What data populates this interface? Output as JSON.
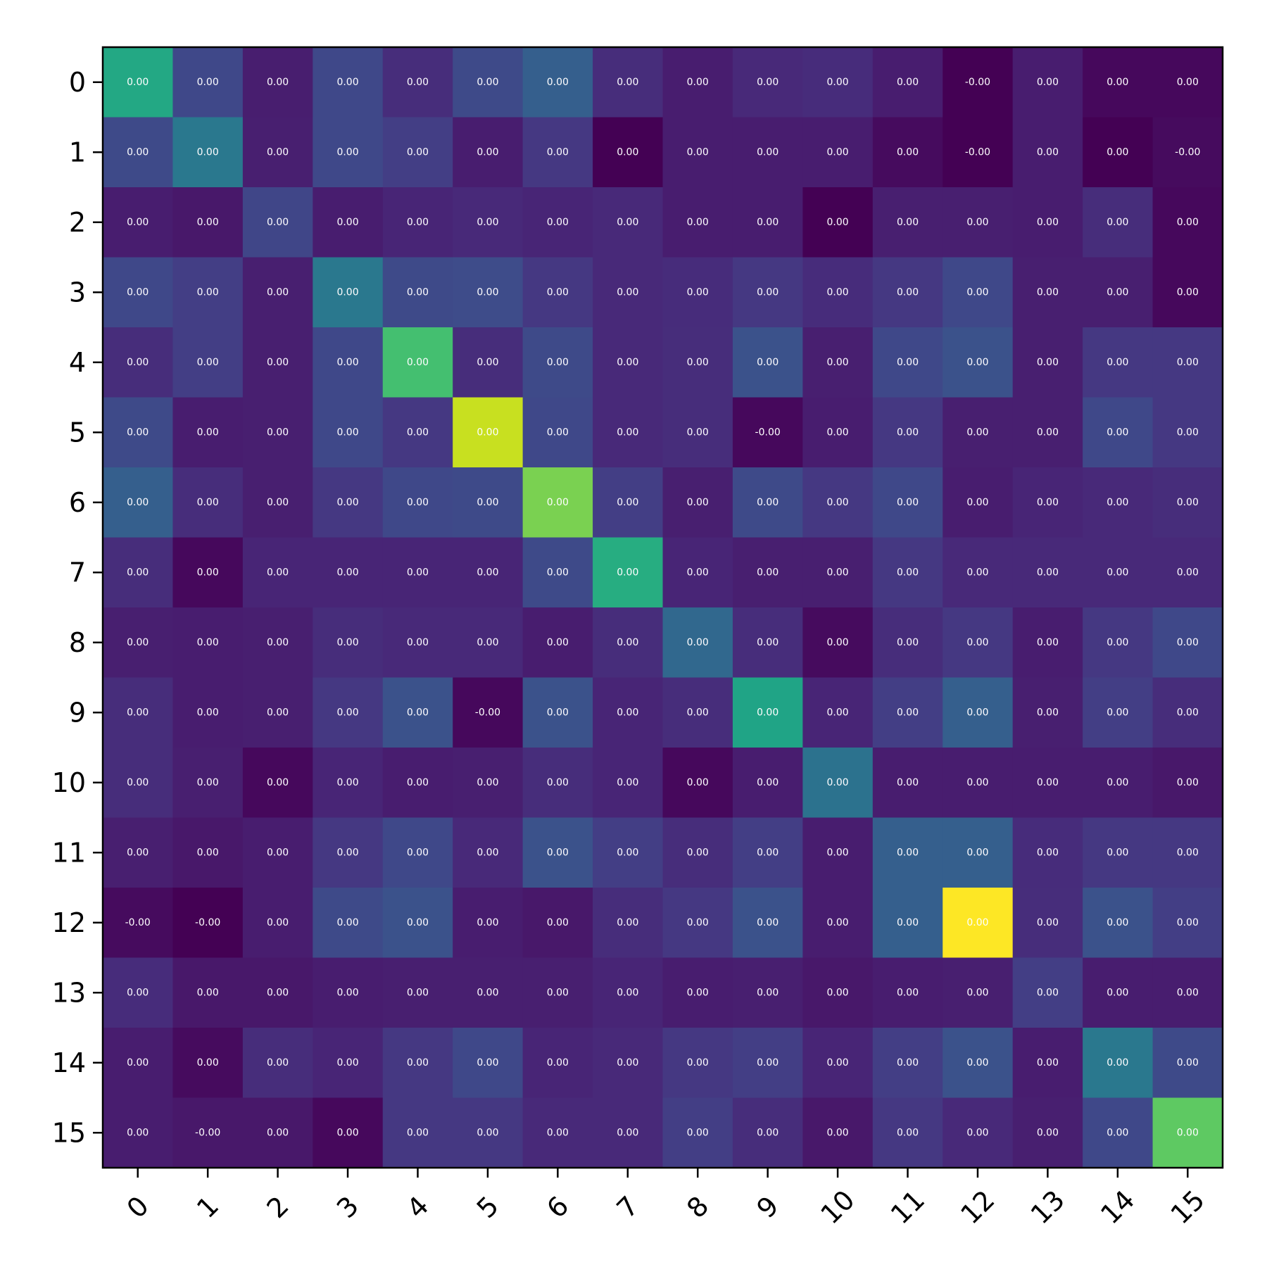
{
  "chart_data": {
    "type": "heatmap",
    "title": "",
    "xlabel": "",
    "ylabel": "",
    "x_ticks": [
      "0",
      "1",
      "2",
      "3",
      "4",
      "5",
      "6",
      "7",
      "8",
      "9",
      "10",
      "11",
      "12",
      "13",
      "14",
      "15"
    ],
    "y_ticks": [
      "0",
      "1",
      "2",
      "3",
      "4",
      "5",
      "6",
      "7",
      "8",
      "9",
      "10",
      "11",
      "12",
      "13",
      "14",
      "15"
    ],
    "x_tick_rotation_deg": 45,
    "colormap": "viridis",
    "grid": false,
    "colorbar": false,
    "cell_labels": [
      [
        "0.00",
        "0.00",
        "0.00",
        "0.00",
        "0.00",
        "0.00",
        "0.00",
        "0.00",
        "0.00",
        "0.00",
        "0.00",
        "0.00",
        "-0.00",
        "0.00",
        "0.00",
        "0.00"
      ],
      [
        "0.00",
        "0.00",
        "0.00",
        "0.00",
        "0.00",
        "0.00",
        "0.00",
        "0.00",
        "0.00",
        "0.00",
        "0.00",
        "0.00",
        "-0.00",
        "0.00",
        "0.00",
        "-0.00"
      ],
      [
        "0.00",
        "0.00",
        "0.00",
        "0.00",
        "0.00",
        "0.00",
        "0.00",
        "0.00",
        "0.00",
        "0.00",
        "0.00",
        "0.00",
        "0.00",
        "0.00",
        "0.00",
        "0.00"
      ],
      [
        "0.00",
        "0.00",
        "0.00",
        "0.00",
        "0.00",
        "0.00",
        "0.00",
        "0.00",
        "0.00",
        "0.00",
        "0.00",
        "0.00",
        "0.00",
        "0.00",
        "0.00",
        "0.00"
      ],
      [
        "0.00",
        "0.00",
        "0.00",
        "0.00",
        "0.00",
        "0.00",
        "0.00",
        "0.00",
        "0.00",
        "0.00",
        "0.00",
        "0.00",
        "0.00",
        "0.00",
        "0.00",
        "0.00"
      ],
      [
        "0.00",
        "0.00",
        "0.00",
        "0.00",
        "0.00",
        "0.00",
        "0.00",
        "0.00",
        "0.00",
        "-0.00",
        "0.00",
        "0.00",
        "0.00",
        "0.00",
        "0.00",
        "0.00"
      ],
      [
        "0.00",
        "0.00",
        "0.00",
        "0.00",
        "0.00",
        "0.00",
        "0.00",
        "0.00",
        "0.00",
        "0.00",
        "0.00",
        "0.00",
        "0.00",
        "0.00",
        "0.00",
        "0.00"
      ],
      [
        "0.00",
        "0.00",
        "0.00",
        "0.00",
        "0.00",
        "0.00",
        "0.00",
        "0.00",
        "0.00",
        "0.00",
        "0.00",
        "0.00",
        "0.00",
        "0.00",
        "0.00",
        "0.00"
      ],
      [
        "0.00",
        "0.00",
        "0.00",
        "0.00",
        "0.00",
        "0.00",
        "0.00",
        "0.00",
        "0.00",
        "0.00",
        "0.00",
        "0.00",
        "0.00",
        "0.00",
        "0.00",
        "0.00"
      ],
      [
        "0.00",
        "0.00",
        "0.00",
        "0.00",
        "0.00",
        "-0.00",
        "0.00",
        "0.00",
        "0.00",
        "0.00",
        "0.00",
        "0.00",
        "0.00",
        "0.00",
        "0.00",
        "0.00"
      ],
      [
        "0.00",
        "0.00",
        "0.00",
        "0.00",
        "0.00",
        "0.00",
        "0.00",
        "0.00",
        "0.00",
        "0.00",
        "0.00",
        "0.00",
        "0.00",
        "0.00",
        "0.00",
        "0.00"
      ],
      [
        "0.00",
        "0.00",
        "0.00",
        "0.00",
        "0.00",
        "0.00",
        "0.00",
        "0.00",
        "0.00",
        "0.00",
        "0.00",
        "0.00",
        "0.00",
        "0.00",
        "0.00",
        "0.00"
      ],
      [
        "-0.00",
        "-0.00",
        "0.00",
        "0.00",
        "0.00",
        "0.00",
        "0.00",
        "0.00",
        "0.00",
        "0.00",
        "0.00",
        "0.00",
        "0.00",
        "0.00",
        "0.00",
        "0.00"
      ],
      [
        "0.00",
        "0.00",
        "0.00",
        "0.00",
        "0.00",
        "0.00",
        "0.00",
        "0.00",
        "0.00",
        "0.00",
        "0.00",
        "0.00",
        "0.00",
        "0.00",
        "0.00",
        "0.00"
      ],
      [
        "0.00",
        "0.00",
        "0.00",
        "0.00",
        "0.00",
        "0.00",
        "0.00",
        "0.00",
        "0.00",
        "0.00",
        "0.00",
        "0.00",
        "0.00",
        "0.00",
        "0.00",
        "0.00"
      ],
      [
        "0.00",
        "-0.00",
        "0.00",
        "0.00",
        "0.00",
        "0.00",
        "0.00",
        "0.00",
        "0.00",
        "0.00",
        "0.00",
        "0.00",
        "0.00",
        "0.00",
        "0.00",
        "0.00"
      ]
    ],
    "colors": [
      [
        "#23a884",
        "#3f4889",
        "#481e6f",
        "#3f4889",
        "#472d7b",
        "#3e4a89",
        "#355f8d",
        "#472d7b",
        "#481d6f",
        "#482979",
        "#472c7b",
        "#481d6f",
        "#440154",
        "#481d6f",
        "#46085c",
        "#46085c"
      ],
      [
        "#3e4a89",
        "#2a788e",
        "#481f70",
        "#3f4889",
        "#433e85",
        "#481d6f",
        "#453882",
        "#440154",
        "#481d6f",
        "#481d6f",
        "#481d6f",
        "#460b5e",
        "#440154",
        "#481d6f",
        "#440154",
        "#460b5e"
      ],
      [
        "#481d6f",
        "#48186a",
        "#404688",
        "#481d6f",
        "#482576",
        "#482979",
        "#482576",
        "#482979",
        "#481d6f",
        "#481d6f",
        "#440154",
        "#481f70",
        "#481f70",
        "#481d6f",
        "#472d7b",
        "#46085c"
      ],
      [
        "#3f4889",
        "#433e85",
        "#481f70",
        "#2a788e",
        "#3e4a89",
        "#3e4c8a",
        "#453882",
        "#482979",
        "#472c7b",
        "#453882",
        "#472c7b",
        "#453882",
        "#3f4889",
        "#481f70",
        "#481f70",
        "#46085c"
      ],
      [
        "#472d7b",
        "#433e85",
        "#481f70",
        "#3f4889",
        "#44bf70",
        "#472d7b",
        "#3e4a89",
        "#482979",
        "#472d7b",
        "#3b528b",
        "#481f70",
        "#3f4889",
        "#3b528b",
        "#481f70",
        "#453882",
        "#453882"
      ],
      [
        "#3e4a89",
        "#481d6f",
        "#481f70",
        "#3f4889",
        "#453882",
        "#c8e020",
        "#3f4889",
        "#482979",
        "#472d7b",
        "#46085c",
        "#481d6f",
        "#453882",
        "#481f70",
        "#481f70",
        "#3f4889",
        "#453882"
      ],
      [
        "#355f8d",
        "#472d7b",
        "#481f70",
        "#453882",
        "#3f4889",
        "#3e4a89",
        "#7ad151",
        "#433e85",
        "#481f70",
        "#3e4a89",
        "#453882",
        "#3f4889",
        "#481d6f",
        "#482576",
        "#482979",
        "#472d7b"
      ],
      [
        "#472d7b",
        "#46085c",
        "#482576",
        "#482576",
        "#482576",
        "#482576",
        "#3e4a89",
        "#27ad81",
        "#482576",
        "#481f70",
        "#481f70",
        "#453882",
        "#482979",
        "#482979",
        "#482979",
        "#482979"
      ],
      [
        "#481f70",
        "#481d6f",
        "#481f70",
        "#472d7b",
        "#482979",
        "#482979",
        "#481d6f",
        "#472d7b",
        "#31688e",
        "#472d7b",
        "#460b5e",
        "#472d7b",
        "#453882",
        "#481d6f",
        "#453882",
        "#3f4889"
      ],
      [
        "#472d7b",
        "#481d6f",
        "#481f70",
        "#453882",
        "#3b528b",
        "#46085c",
        "#3b528b",
        "#482576",
        "#472d7b",
        "#20a486",
        "#482576",
        "#433e85",
        "#355f8d",
        "#481f70",
        "#433e85",
        "#472d7b"
      ],
      [
        "#472d7b",
        "#481f70",
        "#46085c",
        "#482576",
        "#481d6f",
        "#481f70",
        "#472d7b",
        "#482576",
        "#46085c",
        "#481d6f",
        "#2c728e",
        "#481d6f",
        "#481d6f",
        "#481d6f",
        "#481d6f",
        "#48186a"
      ],
      [
        "#481f70",
        "#48186a",
        "#481d6f",
        "#453882",
        "#3f4889",
        "#482979",
        "#3b528b",
        "#433e85",
        "#472d7b",
        "#433e85",
        "#481d6f",
        "#355f8d",
        "#355f8d",
        "#472c7b",
        "#453882",
        "#453882"
      ],
      [
        "#460b5e",
        "#440154",
        "#481d6f",
        "#3e4a89",
        "#3b528b",
        "#481d6f",
        "#48186a",
        "#472d7b",
        "#453882",
        "#3b528b",
        "#481d6f",
        "#355f8d",
        "#fde725",
        "#472d7b",
        "#3b528b",
        "#433e85"
      ],
      [
        "#472c7b",
        "#48186a",
        "#48186a",
        "#481d6f",
        "#481f70",
        "#481f70",
        "#481f70",
        "#482576",
        "#481d6f",
        "#481f70",
        "#48186a",
        "#481d6f",
        "#481f70",
        "#433e85",
        "#481d6f",
        "#481d6f"
      ],
      [
        "#481d6f",
        "#460b5e",
        "#472d7b",
        "#482576",
        "#453882",
        "#3f4889",
        "#482576",
        "#482979",
        "#453882",
        "#433e85",
        "#482576",
        "#433e85",
        "#3b528b",
        "#481d6f",
        "#2a788e",
        "#3e4a89"
      ],
      [
        "#481d6f",
        "#48186a",
        "#48186a",
        "#46085c",
        "#453882",
        "#453882",
        "#482979",
        "#482979",
        "#433e85",
        "#472d7b",
        "#48186a",
        "#453882",
        "#482979",
        "#481f70",
        "#3f4889",
        "#5ec962"
      ]
    ]
  }
}
